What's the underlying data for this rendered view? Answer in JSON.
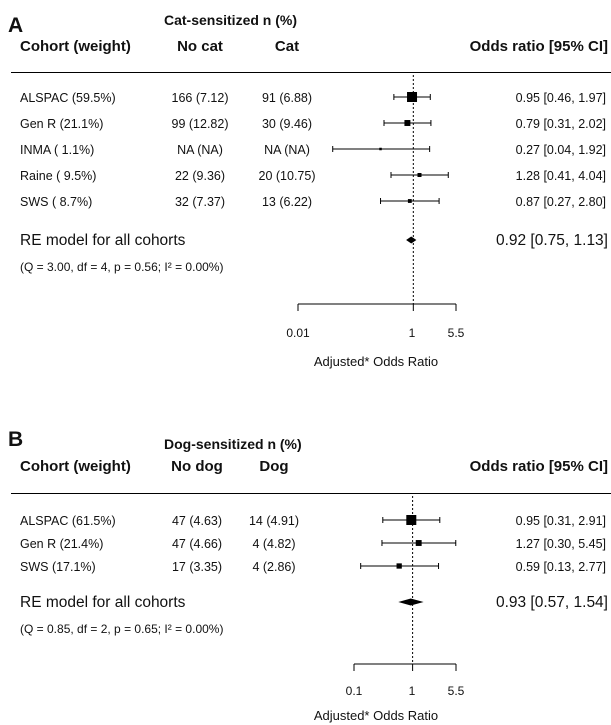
{
  "chart_data": [
    {
      "type": "forest",
      "panel_letter": "A",
      "group_header": "Cat-sensitized n (%)",
      "columns": [
        "Cohort (weight)",
        "No cat",
        "Cat",
        "Odds ratio [95% CI]"
      ],
      "rows": [
        {
          "cohort": "ALSPAC (59.5%)",
          "no": "166 (7.12)",
          "yes": "91 (6.88)",
          "or_text": "0.95 [0.46, 1.97]",
          "or": 0.95,
          "lo": 0.46,
          "hi": 1.97,
          "weight": 59.5
        },
        {
          "cohort": "Gen R (21.1%)",
          "no": "99 (12.82)",
          "yes": "30 (9.46)",
          "or_text": "0.79 [0.31, 2.02]",
          "or": 0.79,
          "lo": 0.31,
          "hi": 2.02,
          "weight": 21.1
        },
        {
          "cohort": "INMA ( 1.1%)",
          "no": "NA (NA)",
          "yes": "NA (NA)",
          "or_text": "0.27 [0.04, 1.92]",
          "or": 0.27,
          "lo": 0.04,
          "hi": 1.92,
          "weight": 1.1
        },
        {
          "cohort": "Raine ( 9.5%)",
          "no": "22 (9.36)",
          "yes": "20 (10.75)",
          "or_text": "1.28 [0.41, 4.04]",
          "or": 1.28,
          "lo": 0.41,
          "hi": 4.04,
          "weight": 9.5
        },
        {
          "cohort": "SWS ( 8.7%)",
          "no": "32 (7.37)",
          "yes": "13 (6.22)",
          "or_text": "0.87 [0.27, 2.80]",
          "or": 0.87,
          "lo": 0.27,
          "hi": 2.8,
          "weight": 8.7
        }
      ],
      "summary": {
        "label": "RE model for all cohorts",
        "or_text": "0.92 [0.75, 1.13]",
        "or": 0.92,
        "lo": 0.75,
        "hi": 1.13,
        "heterogeneity": "(Q = 3.00, df = 4, p = 0.56; I² = 0.00%)"
      },
      "x_scale": "log",
      "xlim": [
        0.01,
        5.5
      ],
      "xticks": [
        "0.01",
        "1",
        "5.5"
      ],
      "xlabel": "Adjusted* Odds Ratio",
      "reference_line": 1
    },
    {
      "type": "forest",
      "panel_letter": "B",
      "group_header": "Dog-sensitized n (%)",
      "columns": [
        "Cohort (weight)",
        "No dog",
        "Dog",
        "Odds ratio [95% CI]"
      ],
      "rows": [
        {
          "cohort": "ALSPAC (61.5%)",
          "no": "47 (4.63)",
          "yes": "14 (4.91)",
          "or_text": "0.95 [0.31, 2.91]",
          "or": 0.95,
          "lo": 0.31,
          "hi": 2.91,
          "weight": 61.5
        },
        {
          "cohort": "Gen R (21.4%)",
          "no": "47 (4.66)",
          "yes": "4 (4.82)",
          "or_text": "1.27 [0.30, 5.45]",
          "or": 1.27,
          "lo": 0.3,
          "hi": 5.45,
          "weight": 21.4
        },
        {
          "cohort": "SWS (17.1%)",
          "no": "17 (3.35)",
          "yes": "4 (2.86)",
          "or_text": "0.59 [0.13, 2.77]",
          "or": 0.59,
          "lo": 0.13,
          "hi": 2.77,
          "weight": 17.1
        }
      ],
      "summary": {
        "label": "RE model for all cohorts",
        "or_text": "0.93 [0.57, 1.54]",
        "or": 0.93,
        "lo": 0.57,
        "hi": 1.54,
        "heterogeneity": "(Q = 0.85, df = 2, p = 0.65; I² = 0.00%)"
      },
      "x_scale": "log",
      "xlim": [
        0.1,
        5.5
      ],
      "xticks": [
        "0.1",
        "1",
        "5.5"
      ],
      "xlabel": "Adjusted* Odds Ratio",
      "reference_line": 1
    }
  ]
}
